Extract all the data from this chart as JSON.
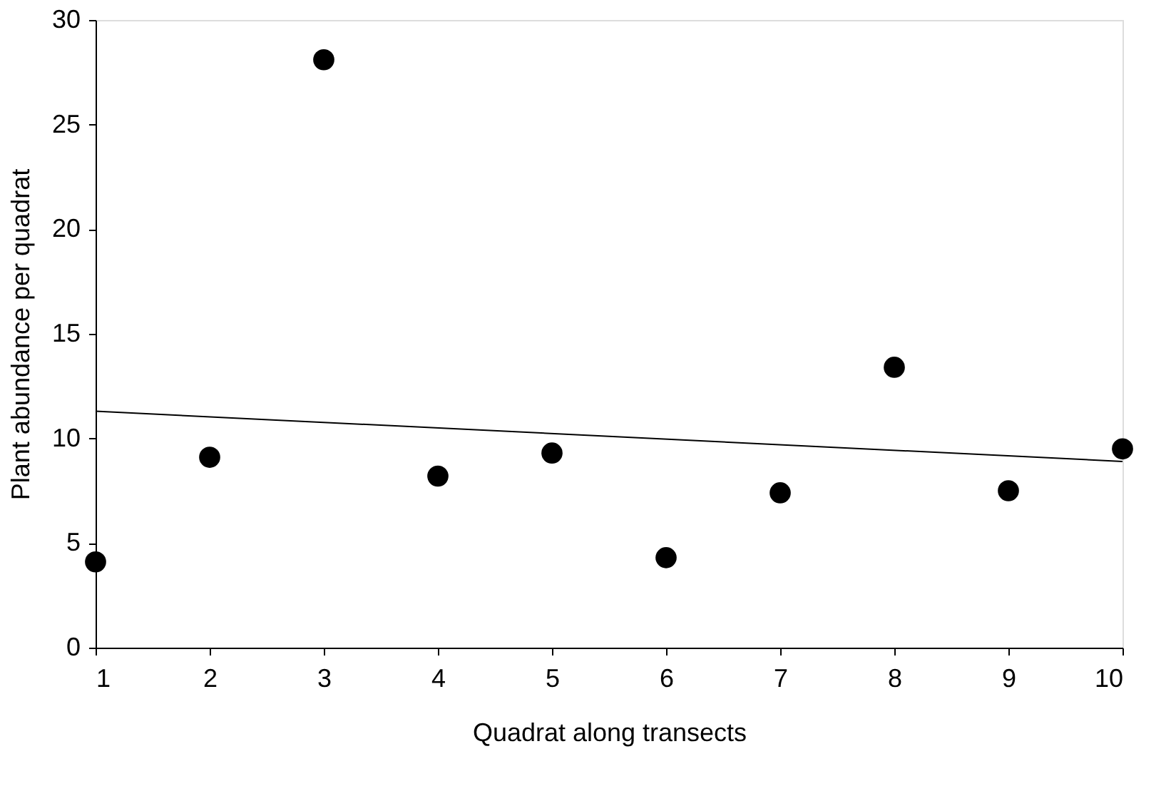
{
  "chart_data": {
    "type": "scatter",
    "xlabel": "Quadrat along transects",
    "ylabel": "Plant abundance per quadrat",
    "xlim": [
      1,
      10
    ],
    "xticks": [
      1,
      2,
      3,
      4,
      5,
      6,
      7,
      8,
      9,
      10
    ],
    "ylim": [
      0,
      30
    ],
    "yticks": [
      0,
      5,
      10,
      15,
      20,
      25,
      30
    ],
    "grid": false,
    "series": [
      {
        "color": "#000000",
        "marker": "circle",
        "x": [
          1,
          2,
          3,
          4,
          5,
          6,
          7,
          8,
          9,
          10
        ],
        "values": [
          4.1,
          9.1,
          28.1,
          8.2,
          9.3,
          4.3,
          7.4,
          13.4,
          7.5,
          9.5
        ]
      },
      {
        "type": "line",
        "color": "#000000",
        "line_style": "solid",
        "x": [
          1,
          10
        ],
        "values": [
          11.3,
          8.9
        ]
      }
    ]
  }
}
